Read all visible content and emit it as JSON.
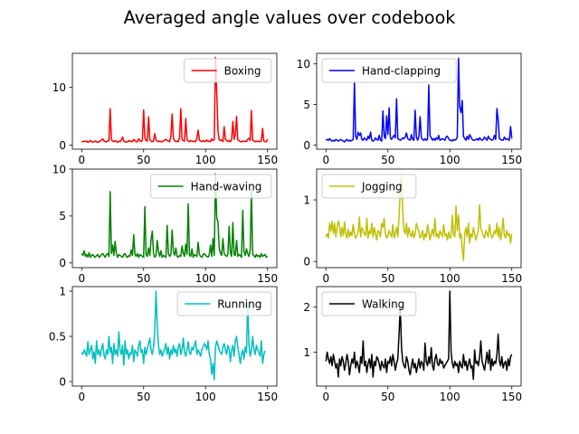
{
  "title": "Averaged angle values over codebook",
  "chart_data": [
    {
      "type": "line",
      "series": [
        {
          "name": "Boxing",
          "color": "#ff0000",
          "values": [
            0.6,
            0.6,
            0.7,
            0.6,
            0.7,
            0.5,
            0.6,
            0.8,
            0.6,
            0.5,
            0.6,
            0.7,
            0.6,
            0.5,
            0.6,
            0.7,
            0.9,
            1.1,
            0.7,
            0.6,
            0.6,
            0.7,
            0.8,
            6.3,
            1.0,
            0.7,
            0.6,
            0.8,
            0.6,
            0.5,
            0.7,
            0.6,
            0.9,
            1.4,
            0.7,
            0.6,
            0.5,
            0.6,
            0.8,
            0.6,
            0.7,
            0.6,
            1.0,
            0.8,
            0.6,
            0.6,
            1.1,
            0.8,
            0.6,
            0.9,
            6.1,
            1.3,
            0.8,
            0.7,
            4.9,
            1.0,
            0.7,
            0.6,
            0.7,
            2.0,
            0.9,
            0.7,
            0.6,
            0.7,
            0.6,
            0.6,
            0.7,
            0.9,
            1.0,
            0.8,
            0.7,
            0.6,
            1.5,
            5.4,
            1.2,
            0.8,
            0.6,
            0.7,
            0.6,
            1.3,
            6.3,
            1.0,
            0.8,
            0.7,
            4.6,
            1.0,
            0.7,
            0.6,
            0.8,
            0.7,
            0.6,
            0.7,
            0.6,
            1.2,
            2.6,
            0.9,
            0.7,
            0.6,
            0.8,
            0.6,
            0.7,
            0.9,
            0.6,
            0.7,
            0.6,
            1.1,
            0.8,
            1.0,
            15.2,
            9.2,
            2.5,
            0.9,
            0.8,
            0.9,
            0.6,
            3.2,
            1.0,
            0.8,
            0.6,
            0.8,
            0.6,
            0.9,
            4.1,
            1.0,
            1.8,
            5.0,
            0.9,
            0.8,
            0.6,
            0.6,
            0.7,
            0.6,
            0.7,
            0.6,
            1.0,
            1.2,
            0.8,
            6.0,
            0.9,
            0.7,
            0.6,
            0.7,
            0.6,
            0.7,
            0.6,
            0.7,
            2.9,
            0.7,
            0.6,
            0.6,
            1.0
          ]
        }
      ],
      "xlim": [
        -7.5,
        157.5
      ],
      "ylim": [
        -0.7,
        15.9
      ],
      "xticks": [
        0,
        50,
        100,
        150
      ],
      "yticks": [
        0,
        10
      ],
      "legend": "top-right"
    },
    {
      "type": "line",
      "series": [
        {
          "name": "Hand-clapping",
          "color": "#0000ff",
          "values": [
            0.6,
            0.7,
            0.6,
            0.8,
            0.6,
            0.5,
            0.6,
            0.5,
            0.7,
            0.6,
            0.5,
            0.6,
            0.7,
            0.6,
            0.5,
            0.4,
            0.6,
            0.7,
            0.5,
            0.6,
            0.5,
            0.6,
            0.7,
            7.8,
            1.1,
            0.7,
            1.6,
            1.2,
            1.5,
            0.7,
            0.6,
            0.9,
            0.7,
            0.6,
            1.1,
            0.8,
            1.6,
            0.6,
            0.5,
            0.6,
            0.9,
            0.7,
            0.6,
            1.2,
            0.6,
            0.5,
            4.2,
            1.1,
            0.8,
            3.6,
            1.3,
            4.6,
            0.9,
            0.7,
            1.0,
            1.2,
            0.9,
            5.7,
            0.8,
            0.7,
            0.6,
            0.7,
            0.9,
            0.8,
            1.0,
            1.5,
            0.8,
            0.7,
            0.6,
            1.3,
            0.7,
            0.6,
            4.3,
            1.0,
            0.6,
            1.1,
            3.5,
            0.9,
            0.7,
            0.6,
            0.8,
            0.6,
            0.7,
            7.4,
            1.2,
            0.9,
            0.6,
            0.8,
            0.6,
            0.9,
            0.7,
            1.2,
            0.6,
            0.7,
            0.8,
            0.7,
            0.6,
            1.0,
            1.1,
            0.8,
            0.6,
            0.6,
            0.5,
            0.7,
            0.6,
            0.7,
            1.0,
            10.7,
            4.7,
            4.0,
            5.5,
            1.1,
            0.8,
            0.6,
            1.1,
            0.7,
            1.3,
            1.0,
            0.7,
            0.6,
            0.6,
            0.7,
            0.8,
            0.6,
            0.9,
            0.7,
            0.6,
            0.7,
            1.0,
            0.8,
            0.6,
            1.1,
            0.8,
            0.7,
            0.6,
            0.7,
            1.2,
            0.7,
            4.5,
            3.1,
            0.8,
            0.7,
            0.6,
            0.6,
            1.0,
            0.7,
            0.8,
            0.7,
            0.6,
            2.3,
            0.8
          ]
        }
      ],
      "xlim": [
        -7.5,
        157.5
      ],
      "ylim": [
        -0.5,
        11.3
      ],
      "xticks": [
        0,
        50,
        100,
        150
      ],
      "yticks": [
        0,
        5,
        10
      ],
      "legend": "top-left"
    },
    {
      "type": "line",
      "series": [
        {
          "name": "Hand-waving",
          "color": "#008000",
          "values": [
            1.0,
            0.8,
            1.3,
            0.7,
            0.9,
            0.6,
            1.1,
            0.6,
            0.8,
            0.9,
            0.7,
            0.6,
            0.8,
            0.9,
            0.6,
            0.7,
            0.9,
            1.0,
            0.8,
            0.6,
            0.9,
            1.0,
            0.7,
            7.6,
            1.0,
            1.9,
            0.8,
            2.3,
            1.0,
            0.6,
            0.9,
            0.8,
            0.7,
            0.6,
            0.9,
            1.0,
            0.7,
            0.6,
            0.8,
            0.7,
            1.4,
            0.8,
            3.0,
            0.9,
            0.7,
            1.0,
            0.6,
            0.9,
            0.8,
            0.7,
            0.6,
            6.0,
            0.9,
            0.7,
            1.6,
            0.8,
            2.5,
            3.4,
            1.0,
            0.6,
            0.8,
            2.4,
            1.2,
            0.7,
            1.3,
            0.6,
            0.8,
            0.7,
            0.6,
            4.0,
            1.0,
            0.7,
            0.9,
            3.5,
            1.2,
            0.8,
            1.6,
            0.7,
            0.6,
            0.8,
            0.7,
            1.8,
            1.0,
            0.7,
            2.0,
            0.9,
            6.3,
            0.8,
            0.7,
            1.5,
            0.6,
            0.9,
            0.8,
            0.7,
            2.2,
            0.9,
            0.7,
            0.6,
            0.9,
            1.0,
            0.8,
            0.7,
            0.6,
            0.9,
            1.9,
            0.7,
            2.6,
            0.8,
            9.5,
            4.8,
            4.4,
            1.6,
            1.0,
            0.8,
            2.6,
            1.0,
            0.8,
            0.7,
            0.9,
            3.9,
            1.1,
            0.7,
            4.3,
            0.9,
            0.8,
            2.4,
            0.7,
            0.9,
            0.8,
            0.6,
            5.6,
            1.2,
            0.8,
            1.5,
            1.0,
            0.7,
            1.4,
            7.8,
            0.9,
            0.8,
            0.6,
            0.9,
            0.7,
            0.8,
            0.6,
            1.0,
            0.7,
            0.8,
            0.9,
            0.6,
            0.7
          ]
        }
      ],
      "xlim": [
        -7.5,
        157.5
      ],
      "ylim": [
        -0.5,
        10.0
      ],
      "xticks": [
        0,
        50,
        100,
        150
      ],
      "yticks": [
        0,
        5,
        10
      ],
      "legend": "top-right"
    },
    {
      "type": "line",
      "series": [
        {
          "name": "Jogging",
          "color": "#bfbf00",
          "values": [
            0.4,
            0.45,
            0.38,
            0.62,
            0.5,
            0.65,
            0.45,
            0.62,
            0.4,
            0.55,
            0.66,
            0.58,
            0.4,
            0.55,
            0.42,
            0.64,
            0.45,
            0.38,
            0.52,
            0.4,
            0.48,
            0.42,
            0.6,
            0.45,
            0.38,
            0.42,
            0.48,
            0.72,
            0.4,
            0.55,
            0.5,
            0.45,
            0.42,
            0.7,
            0.38,
            0.5,
            0.45,
            0.62,
            0.4,
            0.55,
            0.45,
            0.35,
            0.5,
            0.48,
            0.4,
            0.62,
            0.55,
            0.7,
            0.45,
            0.38,
            0.42,
            0.5,
            0.45,
            0.4,
            0.6,
            0.38,
            0.45,
            0.55,
            0.4,
            0.72,
            1.15,
            1.4,
            0.8,
            0.5,
            0.45,
            0.62,
            0.4,
            0.55,
            0.45,
            0.4,
            0.5,
            0.38,
            0.45,
            0.62,
            0.55,
            0.48,
            0.38,
            0.42,
            0.5,
            0.35,
            0.45,
            0.4,
            0.6,
            0.48,
            0.35,
            0.45,
            0.52,
            0.42,
            0.7,
            0.4,
            0.45,
            0.38,
            0.5,
            0.45,
            0.4,
            0.6,
            0.42,
            0.45,
            0.35,
            0.48,
            0.38,
            0.4,
            0.75,
            0.45,
            0.4,
            0.9,
            0.5,
            0.75,
            0.38,
            0.45,
            0.2,
            0.02,
            0.45,
            0.55,
            0.4,
            0.62,
            0.3,
            0.45,
            0.4,
            0.55,
            0.45,
            0.35,
            0.42,
            0.5,
            0.92,
            0.55,
            0.48,
            0.42,
            0.38,
            0.5,
            0.45,
            0.4,
            0.6,
            0.45,
            0.38,
            0.42,
            0.5,
            0.45,
            0.62,
            0.4,
            0.55,
            0.35,
            0.48,
            0.7,
            0.42,
            0.38,
            0.5,
            0.42,
            0.45,
            0.3,
            0.45
          ]
        }
      ],
      "xlim": [
        -7.5,
        157.5
      ],
      "ylim": [
        -0.1,
        1.5
      ],
      "xticks": [
        0,
        50,
        100,
        150
      ],
      "yticks": [
        0,
        1
      ],
      "legend": "top-left"
    },
    {
      "type": "line",
      "series": [
        {
          "name": "Running",
          "color": "#00bfbf",
          "values": [
            0.32,
            0.3,
            0.35,
            0.32,
            0.28,
            0.44,
            0.3,
            0.35,
            0.4,
            0.25,
            0.33,
            0.2,
            0.45,
            0.3,
            0.35,
            0.28,
            0.36,
            0.42,
            0.3,
            0.25,
            0.35,
            0.3,
            0.5,
            0.32,
            0.38,
            0.2,
            0.42,
            0.3,
            0.35,
            0.28,
            0.55,
            0.35,
            0.3,
            0.4,
            0.18,
            0.45,
            0.3,
            0.35,
            0.25,
            0.32,
            0.3,
            0.4,
            0.22,
            0.35,
            0.32,
            0.28,
            0.4,
            0.45,
            0.32,
            0.35,
            0.2,
            0.38,
            0.3,
            0.36,
            0.42,
            0.48,
            0.35,
            0.3,
            0.38,
            0.55,
            1.0,
            0.62,
            0.4,
            0.3,
            0.35,
            0.28,
            0.32,
            0.36,
            0.42,
            0.3,
            0.38,
            0.25,
            0.35,
            0.3,
            0.4,
            0.32,
            0.36,
            0.28,
            0.38,
            0.42,
            0.3,
            0.35,
            0.48,
            0.32,
            0.28,
            0.35,
            0.44,
            0.32,
            0.3,
            0.38,
            0.35,
            0.4,
            0.45,
            0.3,
            0.35,
            0.32,
            0.28,
            0.36,
            0.38,
            0.42,
            0.4,
            0.35,
            0.45,
            0.3,
            0.25,
            0.08,
            0.2,
            0.02,
            0.38,
            0.45,
            0.4,
            0.35,
            0.32,
            0.3,
            0.38,
            0.42,
            0.35,
            0.3,
            0.4,
            0.36,
            0.22,
            0.35,
            0.4,
            0.28,
            0.45,
            0.5,
            0.38,
            0.3,
            0.2,
            0.3,
            0.35,
            0.25,
            0.38,
            0.32,
            0.88,
            0.4,
            0.28,
            0.35,
            0.5,
            0.36,
            0.3,
            0.4,
            0.35,
            0.32,
            0.28,
            0.45,
            0.2,
            0.3,
            0.34
          ]
        }
      ],
      "xlim": [
        -7.5,
        157.5
      ],
      "ylim": [
        -0.05,
        1.05
      ],
      "xticks": [
        0,
        50,
        100,
        150
      ],
      "yticks": [
        0.0,
        0.5,
        1.0
      ],
      "legend": "top-right"
    },
    {
      "type": "line",
      "series": [
        {
          "name": "Walking",
          "color": "#000000",
          "values": [
            0.8,
            1.0,
            0.85,
            0.75,
            0.9,
            0.7,
            0.95,
            0.8,
            0.65,
            0.75,
            0.45,
            0.85,
            0.7,
            0.9,
            0.8,
            0.6,
            0.75,
            0.95,
            0.8,
            0.5,
            0.7,
            0.85,
            0.75,
            1.0,
            0.65,
            0.8,
            0.7,
            0.55,
            0.9,
            0.75,
            1.25,
            0.7,
            0.8,
            0.55,
            0.75,
            0.85,
            0.65,
            0.95,
            0.45,
            0.8,
            0.7,
            0.9,
            0.85,
            0.75,
            0.6,
            0.8,
            0.7,
            0.65,
            0.85,
            0.55,
            0.8,
            0.75,
            0.9,
            0.7,
            0.95,
            0.8,
            0.6,
            0.75,
            0.85,
            1.4,
            2.0,
            1.1,
            0.8,
            0.7,
            0.65,
            0.9,
            0.8,
            0.6,
            0.5,
            0.7,
            0.85,
            0.65,
            0.75,
            0.55,
            0.7,
            0.85,
            0.65,
            0.8,
            0.75,
            0.6,
            1.2,
            0.8,
            0.7,
            0.9,
            0.75,
            1.1,
            0.7,
            0.6,
            0.85,
            0.95,
            0.75,
            0.7,
            0.85,
            0.75,
            0.8,
            0.65,
            0.7,
            0.75,
            0.8,
            0.85,
            2.35,
            1.0,
            0.75,
            0.65,
            0.8,
            0.7,
            0.75,
            0.55,
            0.8,
            0.7,
            0.65,
            0.95,
            0.7,
            0.8,
            0.6,
            0.75,
            0.85,
            0.65,
            0.7,
            0.4,
            1.05,
            0.75,
            0.8,
            0.7,
            0.9,
            1.25,
            0.8,
            0.7,
            0.6,
            0.8,
            1.0,
            0.75,
            1.05,
            0.6,
            0.85,
            0.7,
            0.8,
            0.75,
            0.95,
            1.4,
            0.8,
            0.7,
            0.9,
            0.65,
            0.75,
            0.8,
            0.6,
            0.85,
            0.7,
            0.9,
            0.95
          ]
        }
      ],
      "xlim": [
        -7.5,
        157.5
      ],
      "ylim": [
        0.25,
        2.45
      ],
      "xticks": [
        0,
        50,
        100,
        150
      ],
      "yticks": [
        1,
        2
      ],
      "legend": "top-left"
    }
  ]
}
